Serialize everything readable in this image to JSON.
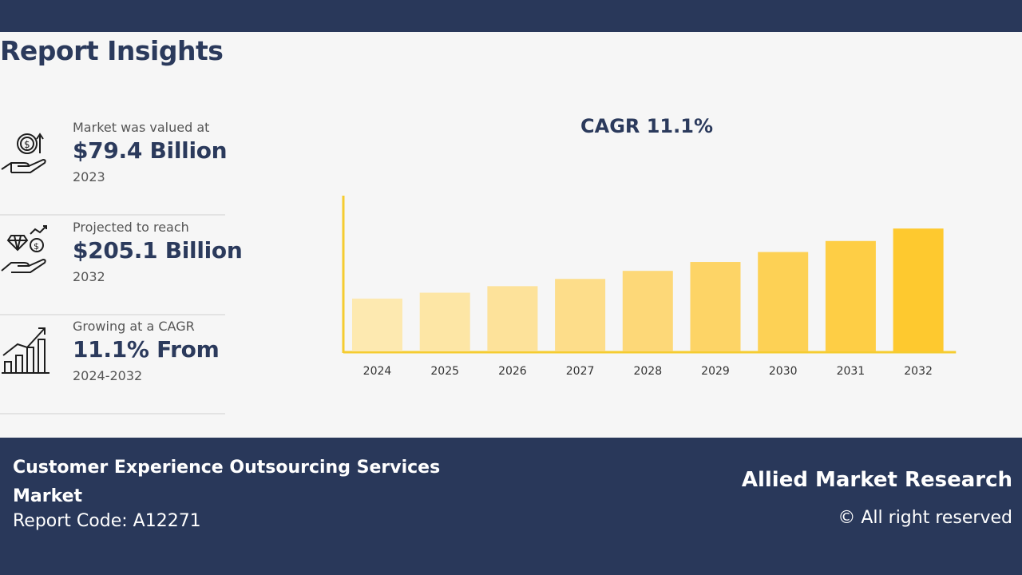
{
  "header": {
    "title": "Report Insights"
  },
  "stats": [
    {
      "label": "Market was valued at",
      "value": "$79.4 Billion",
      "sub": "2023",
      "icon": "money-hand-icon"
    },
    {
      "label": "Projected to reach",
      "value": "$205.1 Billion",
      "sub": "2032",
      "icon": "diamond-coin-hand-icon"
    },
    {
      "label": "Growing at a CAGR",
      "value": "11.1% From",
      "sub": "2024-2032",
      "icon": "growth-bars-icon"
    }
  ],
  "chart_data": {
    "type": "bar",
    "title": "CAGR 11.1%",
    "categories": [
      "2024",
      "2025",
      "2026",
      "2027",
      "2028",
      "2029",
      "2030",
      "2031",
      "2032"
    ],
    "values": [
      88.2,
      98.0,
      108.9,
      121.0,
      134.4,
      149.3,
      165.9,
      184.3,
      205.1
    ],
    "xlabel": "",
    "ylabel": "",
    "ylim": [
      0,
      260
    ],
    "colors": [
      "#fde9b0",
      "#fde6a5",
      "#fde29a",
      "#fddd8a",
      "#fdd878",
      "#fdd466",
      "#fdd155",
      "#fece45",
      "#fec92f"
    ],
    "axis_color": "#f5cc30",
    "grid": false
  },
  "footer": {
    "market_name": "Customer Experience Outsourcing Services Market",
    "report_code": "Report Code: A12271",
    "brand": "Allied Market Research",
    "rights": "© All right reserved"
  }
}
